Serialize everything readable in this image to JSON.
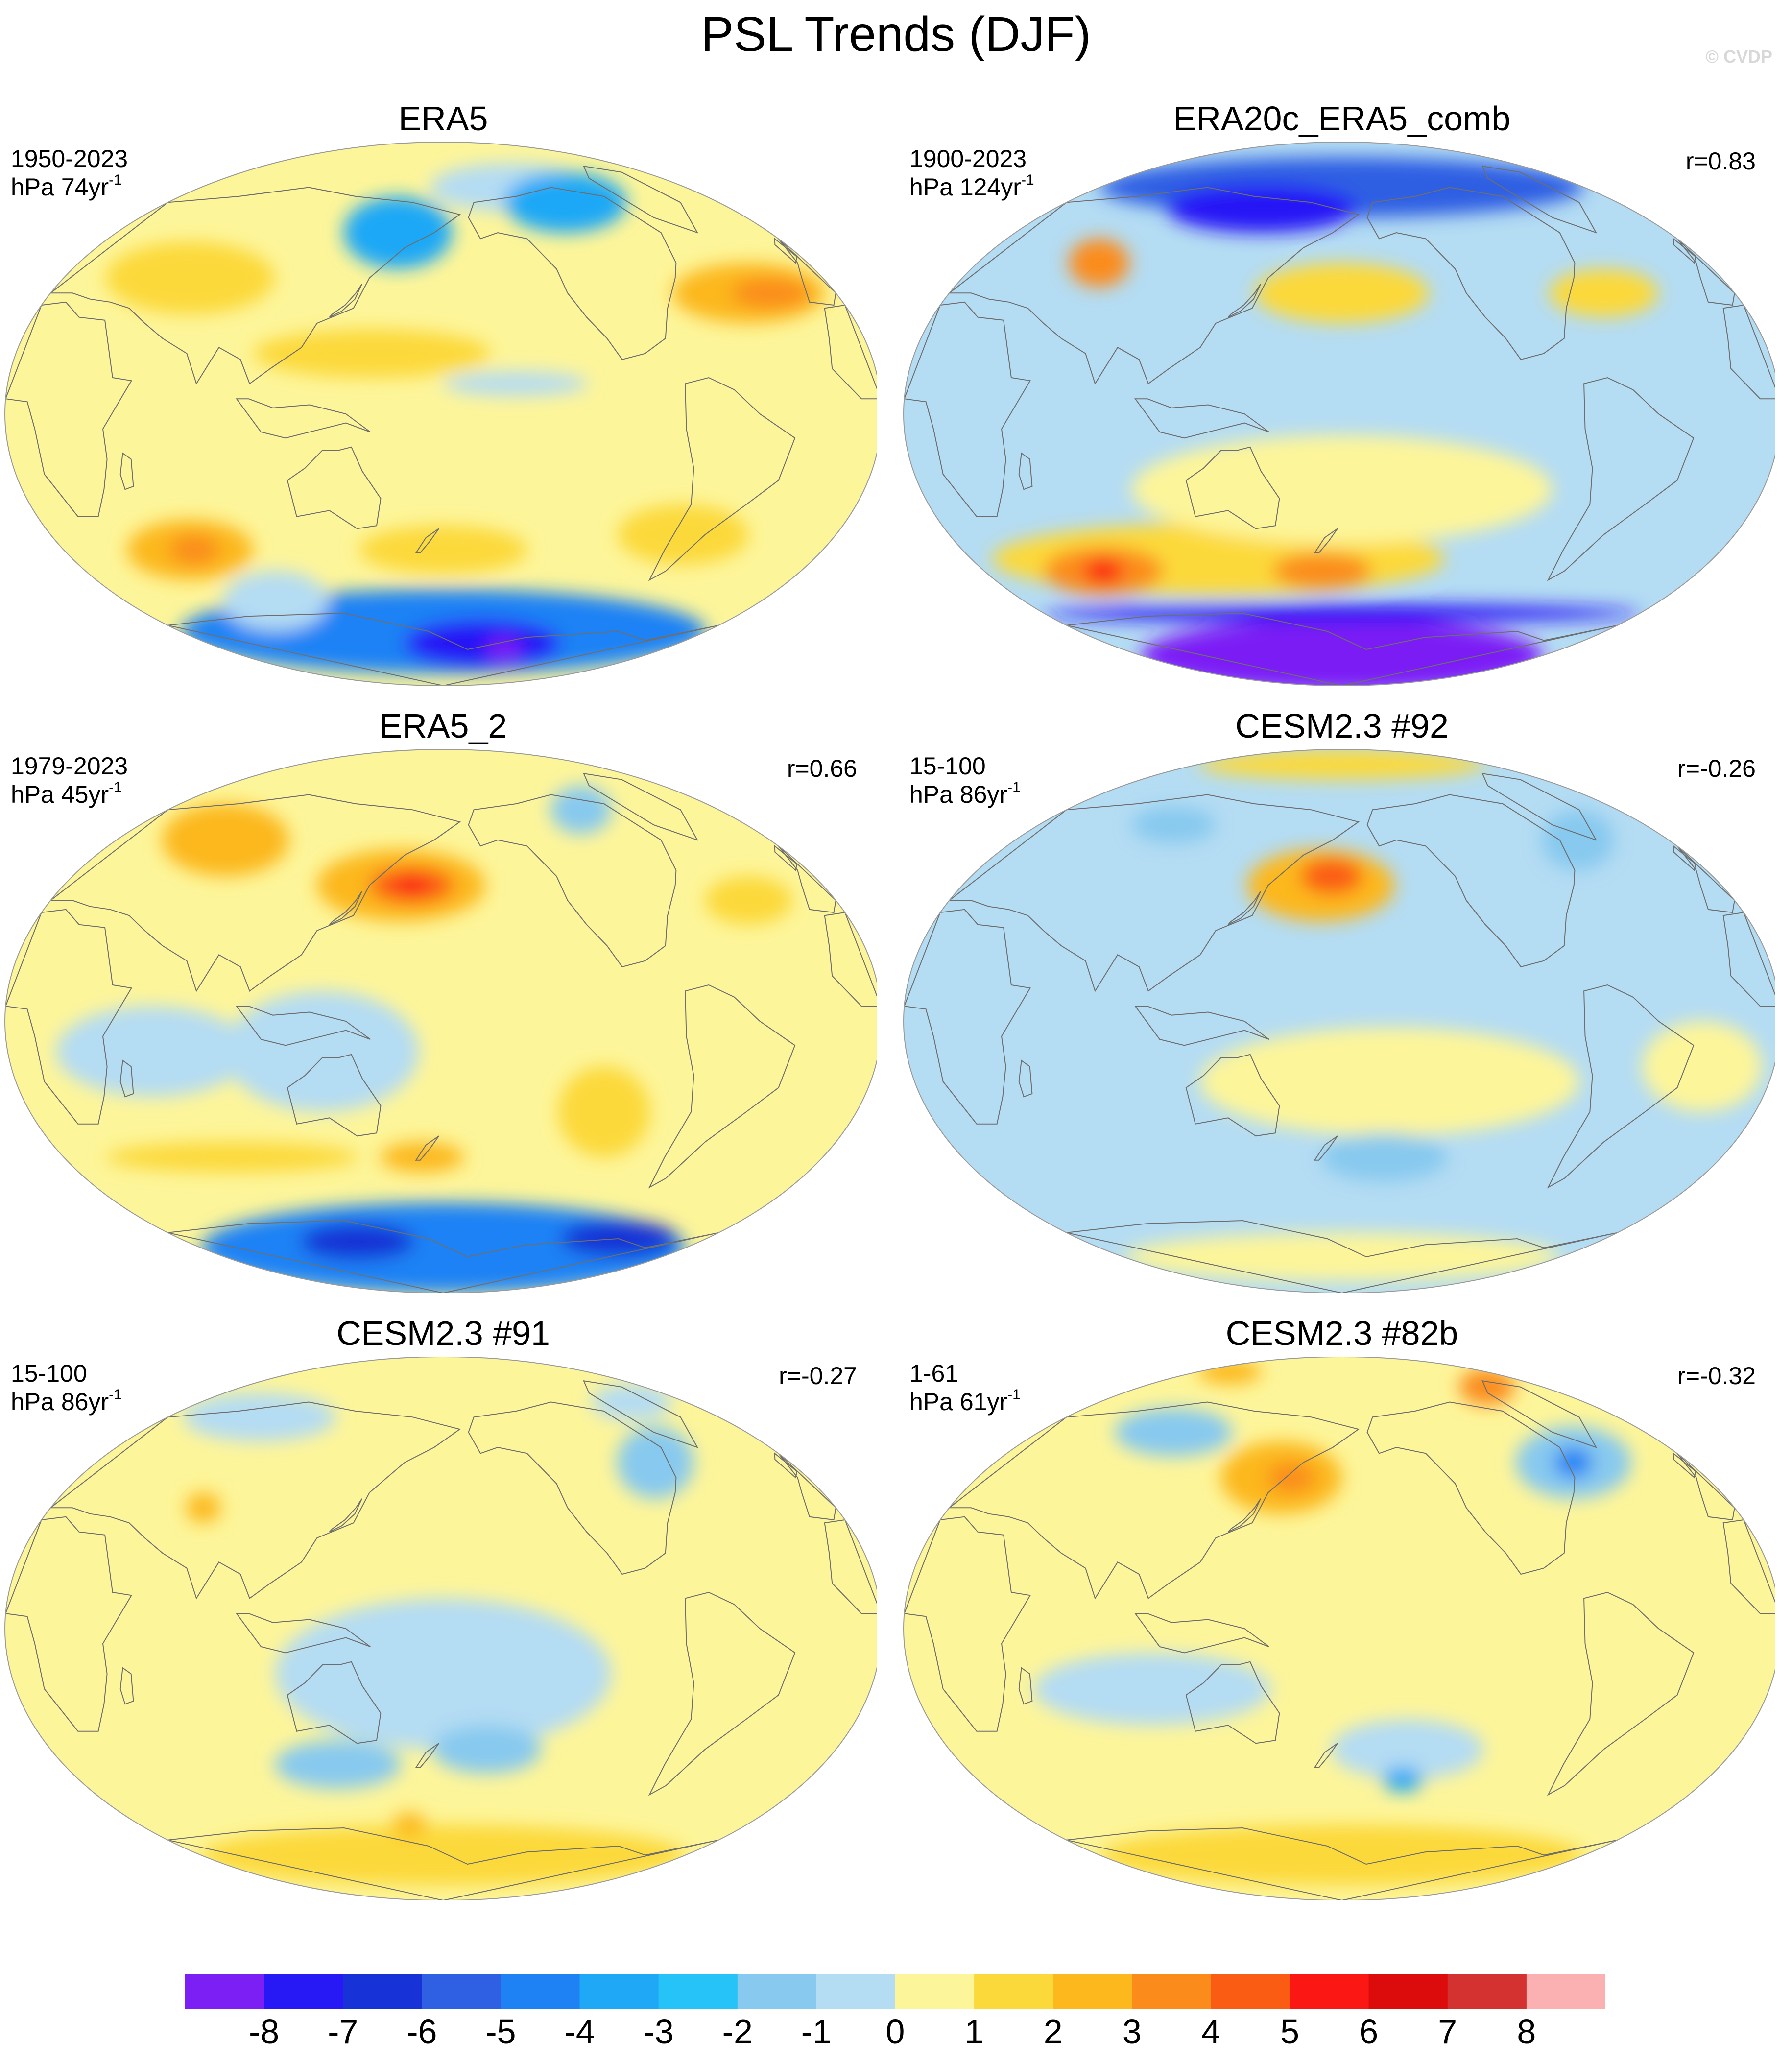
{
  "title": "PSL Trends (DJF)",
  "watermark": "© CVDP",
  "colors": {
    "ocean_background": "#a9d5ef",
    "coastline": "#6e6e6e"
  },
  "colorbar": {
    "colors": [
      "#7b1ff5",
      "#2718f6",
      "#1732d6",
      "#2f5fe3",
      "#1e82f5",
      "#1ea8f6",
      "#25c3f8",
      "#87c9ef",
      "#b4dcf3",
      "#fdf59a",
      "#fcd93a",
      "#fcb81c",
      "#fb8c1b",
      "#fb5c14",
      "#fb1714",
      "#dc0c0c",
      "#d43131",
      "#fbb1b2"
    ],
    "labels": [
      "-8",
      "-7",
      "-6",
      "-5",
      "-4",
      "-3",
      "-2",
      "-1",
      "0",
      "1",
      "2",
      "3",
      "4",
      "5",
      "6",
      "7",
      "8"
    ]
  },
  "panels": [
    {
      "title": "ERA5",
      "period": "1950-2023",
      "units": "hPa 74yr",
      "units_exp": "-1",
      "corr": "",
      "base_color": "#fdf59a",
      "blobs": [
        {
          "lon": 180,
          "lat": -72,
          "rx": 180,
          "ry": 14,
          "c": "#1e82f5"
        },
        {
          "lon": 210,
          "lat": -76,
          "rx": 60,
          "ry": 8,
          "c": "#2718f6"
        },
        {
          "lon": 230,
          "lat": -78,
          "rx": 15,
          "ry": 4,
          "c": "#7b1ff5"
        },
        {
          "lon": 85,
          "lat": -62,
          "rx": 30,
          "ry": 10,
          "c": "#b4dcf3"
        },
        {
          "lon": 60,
          "lat": -45,
          "rx": 30,
          "ry": 10,
          "c": "#fcb81c"
        },
        {
          "lon": 62,
          "lat": -45,
          "rx": 12,
          "ry": 5,
          "c": "#fb8c1b"
        },
        {
          "lon": 180,
          "lat": -45,
          "rx": 40,
          "ry": 8,
          "c": "#fcd93a"
        },
        {
          "lon": 290,
          "lat": -40,
          "rx": 30,
          "ry": 10,
          "c": "#fcd93a"
        },
        {
          "lon": 155,
          "lat": 60,
          "rx": 30,
          "ry": 12,
          "c": "#1ea8f6"
        },
        {
          "lon": 230,
          "lat": 75,
          "rx": 60,
          "ry": 8,
          "c": "#b4dcf3"
        },
        {
          "lon": 260,
          "lat": 70,
          "rx": 40,
          "ry": 10,
          "c": "#1ea8f6"
        },
        {
          "lon": 320,
          "lat": 40,
          "rx": 35,
          "ry": 10,
          "c": "#fcb81c"
        },
        {
          "lon": 330,
          "lat": 40,
          "rx": 18,
          "ry": 5,
          "c": "#fb8c1b"
        },
        {
          "lon": 60,
          "lat": 45,
          "rx": 40,
          "ry": 12,
          "c": "#fcd93a"
        },
        {
          "lon": 150,
          "lat": 20,
          "rx": 50,
          "ry": 8,
          "c": "#fcd93a"
        },
        {
          "lon": 210,
          "lat": 10,
          "rx": 30,
          "ry": 4,
          "c": "#b4dcf3"
        }
      ]
    },
    {
      "title": "ERA20c_ERA5_comb",
      "period": "1900-2023",
      "units": "hPa 124yr",
      "units_exp": "-1",
      "corr": "r=0.83",
      "base_color": "#b4dcf3",
      "blobs": [
        {
          "lon": 180,
          "lat": -80,
          "rx": 180,
          "ry": 12,
          "c": "#7b1ff5"
        },
        {
          "lon": 180,
          "lat": -66,
          "rx": 180,
          "ry": 3,
          "c": "#2718f6"
        },
        {
          "lon": 120,
          "lat": -48,
          "rx": 110,
          "ry": 12,
          "c": "#fcd93a"
        },
        {
          "lon": 60,
          "lat": -52,
          "rx": 30,
          "ry": 8,
          "c": "#fb8c1b"
        },
        {
          "lon": 60,
          "lat": -52,
          "rx": 10,
          "ry": 4,
          "c": "#fb1714"
        },
        {
          "lon": 170,
          "lat": -52,
          "rx": 25,
          "ry": 6,
          "c": "#fb8c1b"
        },
        {
          "lon": 180,
          "lat": -25,
          "rx": 90,
          "ry": 18,
          "c": "#fdf59a"
        },
        {
          "lon": 180,
          "lat": 75,
          "rx": 180,
          "ry": 10,
          "c": "#2f5fe3"
        },
        {
          "lon": 130,
          "lat": 68,
          "rx": 60,
          "ry": 8,
          "c": "#2718f6"
        },
        {
          "lon": 180,
          "lat": 40,
          "rx": 40,
          "ry": 10,
          "c": "#fcd93a"
        },
        {
          "lon": 300,
          "lat": 40,
          "rx": 25,
          "ry": 8,
          "c": "#fcd93a"
        },
        {
          "lon": 60,
          "lat": 50,
          "rx": 15,
          "ry": 8,
          "c": "#fb8c1b"
        }
      ]
    },
    {
      "title": "ERA5_2",
      "period": "1979-2023",
      "units": "hPa 45yr",
      "units_exp": "-1",
      "corr": "r=0.66",
      "base_color": "#fdf59a",
      "blobs": [
        {
          "lon": 180,
          "lat": -75,
          "rx": 180,
          "ry": 15,
          "c": "#1e82f5"
        },
        {
          "lon": 120,
          "lat": -73,
          "rx": 40,
          "ry": 6,
          "c": "#1732d6"
        },
        {
          "lon": 300,
          "lat": -72,
          "rx": 40,
          "ry": 6,
          "c": "#1732d6"
        },
        {
          "lon": 60,
          "lat": -10,
          "rx": 40,
          "ry": 15,
          "c": "#b4dcf3"
        },
        {
          "lon": 130,
          "lat": -10,
          "rx": 40,
          "ry": 20,
          "c": "#b4dcf3"
        },
        {
          "lon": 80,
          "lat": -45,
          "rx": 60,
          "ry": 5,
          "c": "#fcd93a"
        },
        {
          "lon": 170,
          "lat": -45,
          "rx": 20,
          "ry": 5,
          "c": "#fcb81c"
        },
        {
          "lon": 250,
          "lat": -30,
          "rx": 20,
          "ry": 15,
          "c": "#fcd93a"
        },
        {
          "lon": 160,
          "lat": 45,
          "rx": 40,
          "ry": 12,
          "c": "#fcb81c"
        },
        {
          "lon": 165,
          "lat": 45,
          "rx": 20,
          "ry": 6,
          "c": "#fb5c14"
        },
        {
          "lon": 165,
          "lat": 45,
          "rx": 8,
          "ry": 3,
          "c": "#fb1714"
        },
        {
          "lon": 60,
          "lat": 60,
          "rx": 35,
          "ry": 12,
          "c": "#fcb81c"
        },
        {
          "lon": 320,
          "lat": 40,
          "rx": 20,
          "ry": 8,
          "c": "#fcd93a"
        },
        {
          "lon": 270,
          "lat": 70,
          "rx": 20,
          "ry": 8,
          "c": "#87c9ef"
        }
      ]
    },
    {
      "title": "CESM2.3 #92",
      "period": "15-100",
      "units": "hPa 86yr",
      "units_exp": "-1",
      "corr": "r=-0.26",
      "base_color": "#b4dcf3",
      "blobs": [
        {
          "lon": 200,
          "lat": -20,
          "rx": 80,
          "ry": 18,
          "c": "#fdf59a"
        },
        {
          "lon": 330,
          "lat": -15,
          "rx": 25,
          "ry": 15,
          "c": "#fdf59a"
        },
        {
          "lon": 200,
          "lat": -45,
          "rx": 30,
          "ry": 8,
          "c": "#87c9ef"
        },
        {
          "lon": 170,
          "lat": 45,
          "rx": 35,
          "ry": 12,
          "c": "#fcb81c"
        },
        {
          "lon": 175,
          "lat": 48,
          "rx": 15,
          "ry": 6,
          "c": "#fb5c14"
        },
        {
          "lon": 180,
          "lat": 85,
          "rx": 180,
          "ry": 5,
          "c": "#fcd93a"
        },
        {
          "lon": 80,
          "lat": 65,
          "rx": 25,
          "ry": 6,
          "c": "#87c9ef"
        },
        {
          "lon": 310,
          "lat": 60,
          "rx": 20,
          "ry": 10,
          "c": "#87c9ef"
        },
        {
          "lon": 180,
          "lat": -78,
          "rx": 180,
          "ry": 8,
          "c": "#fdf59a"
        }
      ]
    },
    {
      "title": "CESM2.3 #91",
      "period": "15-100",
      "units": "hPa 86yr",
      "units_exp": "-1",
      "corr": "r=-0.27",
      "base_color": "#fdf59a",
      "blobs": [
        {
          "lon": 180,
          "lat": -15,
          "rx": 70,
          "ry": 25,
          "c": "#b4dcf3"
        },
        {
          "lon": 130,
          "lat": -45,
          "rx": 30,
          "ry": 8,
          "c": "#87c9ef"
        },
        {
          "lon": 200,
          "lat": -40,
          "rx": 25,
          "ry": 8,
          "c": "#87c9ef"
        },
        {
          "lon": 180,
          "lat": -75,
          "rx": 180,
          "ry": 10,
          "c": "#fcd93a"
        },
        {
          "lon": 160,
          "lat": -65,
          "rx": 10,
          "ry": 4,
          "c": "#fcb81c"
        },
        {
          "lon": 290,
          "lat": 55,
          "rx": 20,
          "ry": 12,
          "c": "#87c9ef"
        },
        {
          "lon": 60,
          "lat": 70,
          "rx": 50,
          "ry": 8,
          "c": "#b4dcf3"
        },
        {
          "lon": 320,
          "lat": 75,
          "rx": 30,
          "ry": 6,
          "c": "#b4dcf3"
        },
        {
          "lon": 70,
          "lat": 40,
          "rx": 8,
          "ry": 5,
          "c": "#fcb81c"
        }
      ]
    },
    {
      "title": "CESM2.3 #82b",
      "period": "1-61",
      "units": "hPa 61yr",
      "units_exp": "-1",
      "corr": "r=-0.32",
      "base_color": "#fdf59a",
      "blobs": [
        {
          "lon": 100,
          "lat": -20,
          "rx": 50,
          "ry": 12,
          "c": "#b4dcf3"
        },
        {
          "lon": 210,
          "lat": -40,
          "rx": 35,
          "ry": 10,
          "c": "#b4dcf3"
        },
        {
          "lon": 210,
          "lat": -50,
          "rx": 10,
          "ry": 4,
          "c": "#1ea8f6"
        },
        {
          "lon": 180,
          "lat": -75,
          "rx": 180,
          "ry": 10,
          "c": "#fcd93a"
        },
        {
          "lon": 150,
          "lat": 50,
          "rx": 30,
          "ry": 12,
          "c": "#fcb81c"
        },
        {
          "lon": 155,
          "lat": 50,
          "rx": 12,
          "ry": 5,
          "c": "#fb8c1b"
        },
        {
          "lon": 300,
          "lat": 55,
          "rx": 30,
          "ry": 12,
          "c": "#87c9ef"
        },
        {
          "lon": 300,
          "lat": 55,
          "rx": 10,
          "ry": 5,
          "c": "#1e82f5"
        },
        {
          "lon": 80,
          "lat": 65,
          "rx": 35,
          "ry": 8,
          "c": "#87c9ef"
        },
        {
          "lon": 310,
          "lat": 80,
          "rx": 25,
          "ry": 6,
          "c": "#fb8c1b"
        },
        {
          "lon": 40,
          "lat": 85,
          "rx": 40,
          "ry": 4,
          "c": "#fcb81c"
        }
      ]
    }
  ]
}
